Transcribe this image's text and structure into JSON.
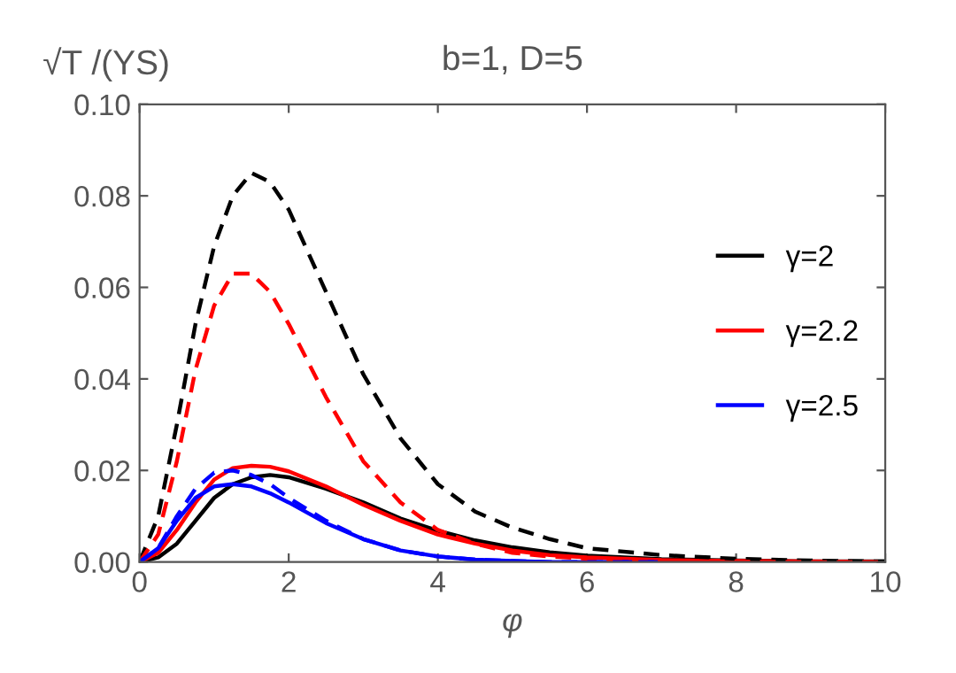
{
  "chart_data": {
    "type": "line",
    "title": "b=1, D=5",
    "ylabel": "√T /(YS)",
    "xlabel": "φ",
    "x": [
      0,
      0.25,
      0.5,
      0.75,
      1,
      1.25,
      1.5,
      1.75,
      2,
      2.5,
      3,
      3.5,
      4,
      4.5,
      5,
      5.5,
      6,
      7,
      8,
      9,
      10
    ],
    "series": [
      {
        "name": "γ=2",
        "color": "#000000",
        "line_style": "solid",
        "values": [
          0,
          0.001,
          0.004,
          0.009,
          0.014,
          0.017,
          0.0185,
          0.019,
          0.0185,
          0.016,
          0.013,
          0.0095,
          0.0068,
          0.0047,
          0.0032,
          0.0021,
          0.0014,
          0.0006,
          0.0003,
          0.0001,
          0.0001
        ]
      },
      {
        "name": "γ=2.2",
        "color": "#ff0000",
        "line_style": "solid",
        "values": [
          0,
          0.002,
          0.007,
          0.013,
          0.018,
          0.0205,
          0.021,
          0.0208,
          0.0198,
          0.0165,
          0.0125,
          0.009,
          0.006,
          0.004,
          0.0025,
          0.0015,
          0.001,
          0.0004,
          0.0002,
          0.0001,
          0
        ]
      },
      {
        "name": "γ=2.5",
        "color": "#0000ff",
        "line_style": "solid",
        "values": [
          0,
          0.003,
          0.009,
          0.014,
          0.0165,
          0.017,
          0.0165,
          0.015,
          0.013,
          0.0085,
          0.005,
          0.0025,
          0.0012,
          0.0005,
          0.0002,
          0,
          0,
          0,
          null,
          null,
          null
        ]
      },
      {
        "color": "#000000",
        "line_style": "dashed",
        "values": [
          0,
          0.01,
          0.03,
          0.052,
          0.069,
          0.08,
          0.085,
          0.083,
          0.077,
          0.059,
          0.041,
          0.027,
          0.017,
          0.011,
          0.0075,
          0.005,
          0.003,
          0.0015,
          0.0007,
          0.0003,
          0.0001
        ]
      },
      {
        "color": "#ff0000",
        "line_style": "dashed",
        "values": [
          0,
          0.006,
          0.022,
          0.042,
          0.056,
          0.063,
          0.063,
          0.059,
          0.052,
          0.036,
          0.022,
          0.013,
          0.007,
          0.004,
          0.002,
          0.0012,
          0.0007,
          0.0003,
          0.0001,
          0,
          0
        ]
      },
      {
        "color": "#0000ff",
        "line_style": "dashed",
        "values": [
          0,
          0.003,
          0.01,
          0.016,
          0.0195,
          0.02,
          0.019,
          0.017,
          0.014,
          0.009,
          0.005,
          0.0025,
          0.0012,
          0.0005,
          0.0002,
          0,
          0,
          0,
          null,
          null,
          null
        ]
      }
    ],
    "xlim": [
      0,
      10
    ],
    "ylim": [
      0,
      0.1
    ],
    "xticks": [
      0,
      2,
      4,
      6,
      8,
      10
    ],
    "yticks": [
      {
        "value": 0,
        "label": "0.00"
      },
      {
        "value": 0.02,
        "label": "0.02"
      },
      {
        "value": 0.04,
        "label": "0.04"
      },
      {
        "value": 0.06,
        "label": "0.06"
      },
      {
        "value": 0.08,
        "label": "0.08"
      },
      {
        "value": 0.1,
        "label": "0.10"
      }
    ],
    "grid": false,
    "legend": "right",
    "marker": "none"
  }
}
